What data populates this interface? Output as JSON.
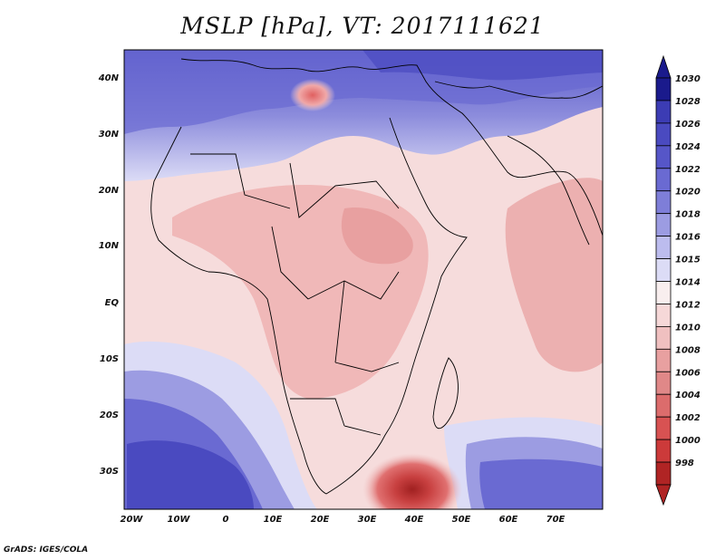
{
  "title": "MSLP [hPa], VT: 2017111621",
  "credit": "GrADS: IGES/COLA",
  "lat_labels": [
    "40N",
    "30N",
    "20N",
    "10N",
    "EQ",
    "10S",
    "20S",
    "30S"
  ],
  "lon_labels": [
    "20W",
    "10W",
    "0",
    "10E",
    "20E",
    "30E",
    "40E",
    "50E",
    "60E",
    "70E"
  ],
  "colorbar": {
    "levels": [
      "1030",
      "1028",
      "1026",
      "1024",
      "1022",
      "1020",
      "1018",
      "1016",
      "1015",
      "1014",
      "1012",
      "1010",
      "1008",
      "1006",
      "1004",
      "1002",
      "1000",
      "998"
    ],
    "colors": [
      "#1a1a8c",
      "#3c3cb4",
      "#4a4ac0",
      "#5656c8",
      "#6a6ad2",
      "#7e7ed8",
      "#9c9ce2",
      "#bcbcee",
      "#dcdcf6",
      "#f8eeee",
      "#f6d8d8",
      "#f0c0c0",
      "#e8a0a0",
      "#e08888",
      "#dc6c6c",
      "#d85252",
      "#cc3a3a",
      "#b02424"
    ]
  },
  "colors": {
    "land_border": "#000000",
    "frame": "#000000"
  }
}
